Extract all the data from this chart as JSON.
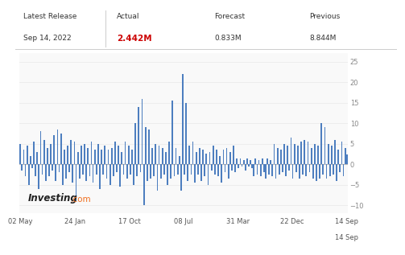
{
  "title_left": "Latest Release",
  "title_date": "Sep 14, 2022",
  "actual_label": "Actual",
  "actual_value": "2.442M",
  "forecast_label": "Forecast",
  "forecast_value": "0.833M",
  "previous_label": "Previous",
  "previous_value": "8.844M",
  "actual_color": "#cc0000",
  "bar_color": "#4d7ebf",
  "background_color": "#ffffff",
  "chart_bg": "#f9f9f9",
  "grid_color": "#e8e8e8",
  "text_color": "#555555",
  "watermark_text": "Investing",
  "watermark_dot": ".com",
  "watermark_text_color": "#222222",
  "watermark_dot_color": "#f07020",
  "x_labels": [
    "02 May",
    "24 Jan",
    "17 Oct",
    "08 Jul",
    "31 Mar",
    "22 Dec",
    "14 Sep"
  ],
  "x_label_row2": [
    "",
    "",
    "",
    "",
    "",
    "",
    "14 Sep"
  ],
  "ylim_min": -12,
  "ylim_max": 27,
  "yticks": [
    -10,
    -5,
    0,
    5,
    10,
    15,
    20,
    25
  ],
  "bar_values": [
    5.0,
    -1.5,
    3.5,
    -3.0,
    4.5,
    -5.0,
    2.0,
    -1.0,
    5.5,
    -3.0,
    3.0,
    -6.0,
    8.0,
    -2.5,
    6.0,
    -4.0,
    4.0,
    -3.0,
    5.0,
    -1.5,
    7.0,
    -4.0,
    8.5,
    -2.0,
    7.5,
    -5.0,
    3.5,
    -3.5,
    4.5,
    -2.0,
    6.0,
    -4.5,
    5.5,
    -9.0,
    3.0,
    -3.5,
    4.5,
    -2.5,
    5.0,
    -4.0,
    4.0,
    -3.0,
    5.5,
    -4.5,
    3.5,
    -2.5,
    5.0,
    -6.0,
    3.5,
    -2.5,
    4.5,
    -3.5,
    3.5,
    -5.0,
    4.0,
    -3.0,
    5.5,
    -2.0,
    4.5,
    -5.5,
    3.0,
    -2.5,
    5.5,
    -3.5,
    4.5,
    -2.5,
    3.5,
    -5.0,
    10.0,
    -3.0,
    14.0,
    -2.0,
    16.0,
    -10.0,
    9.0,
    -4.0,
    8.5,
    -3.5,
    4.0,
    -3.0,
    5.0,
    -6.5,
    4.5,
    -3.5,
    4.0,
    -2.5,
    3.0,
    -5.0,
    5.5,
    -3.5,
    15.5,
    -3.0,
    4.0,
    -2.5,
    2.0,
    -6.5,
    22.0,
    -2.5,
    15.0,
    -4.0,
    4.5,
    -2.5,
    5.5,
    -4.5,
    3.0,
    -2.5,
    4.0,
    -4.0,
    3.5,
    -3.0,
    2.5,
    -5.0,
    3.0,
    -1.5,
    4.5,
    -2.5,
    3.5,
    -3.0,
    2.0,
    -4.5,
    3.5,
    -2.0,
    4.0,
    -3.5,
    3.0,
    -1.5,
    4.5,
    -2.0,
    1.5,
    -1.0,
    1.5,
    -0.5,
    1.0,
    -1.5,
    1.5,
    -0.5,
    1.0,
    -1.0,
    -3.0,
    1.5,
    -2.5,
    1.0,
    -3.0,
    1.5,
    -2.0,
    -3.5,
    1.5,
    -2.5,
    1.0,
    -3.0,
    5.0,
    -3.5,
    4.0,
    -2.5,
    3.5,
    -2.0,
    5.0,
    -3.0,
    4.5,
    -1.5,
    6.5,
    -3.5,
    5.0,
    -2.0,
    4.5,
    -3.5,
    5.5,
    -2.5,
    6.0,
    -3.0,
    5.5,
    -2.0,
    4.0,
    -3.5,
    5.0,
    -4.0,
    4.5,
    -3.5,
    10.0,
    -2.5,
    9.0,
    -3.5,
    5.0,
    -3.0,
    4.5,
    -2.5,
    6.0,
    -4.0,
    3.5,
    -2.0,
    5.5,
    -3.0,
    4.0,
    2.442
  ]
}
